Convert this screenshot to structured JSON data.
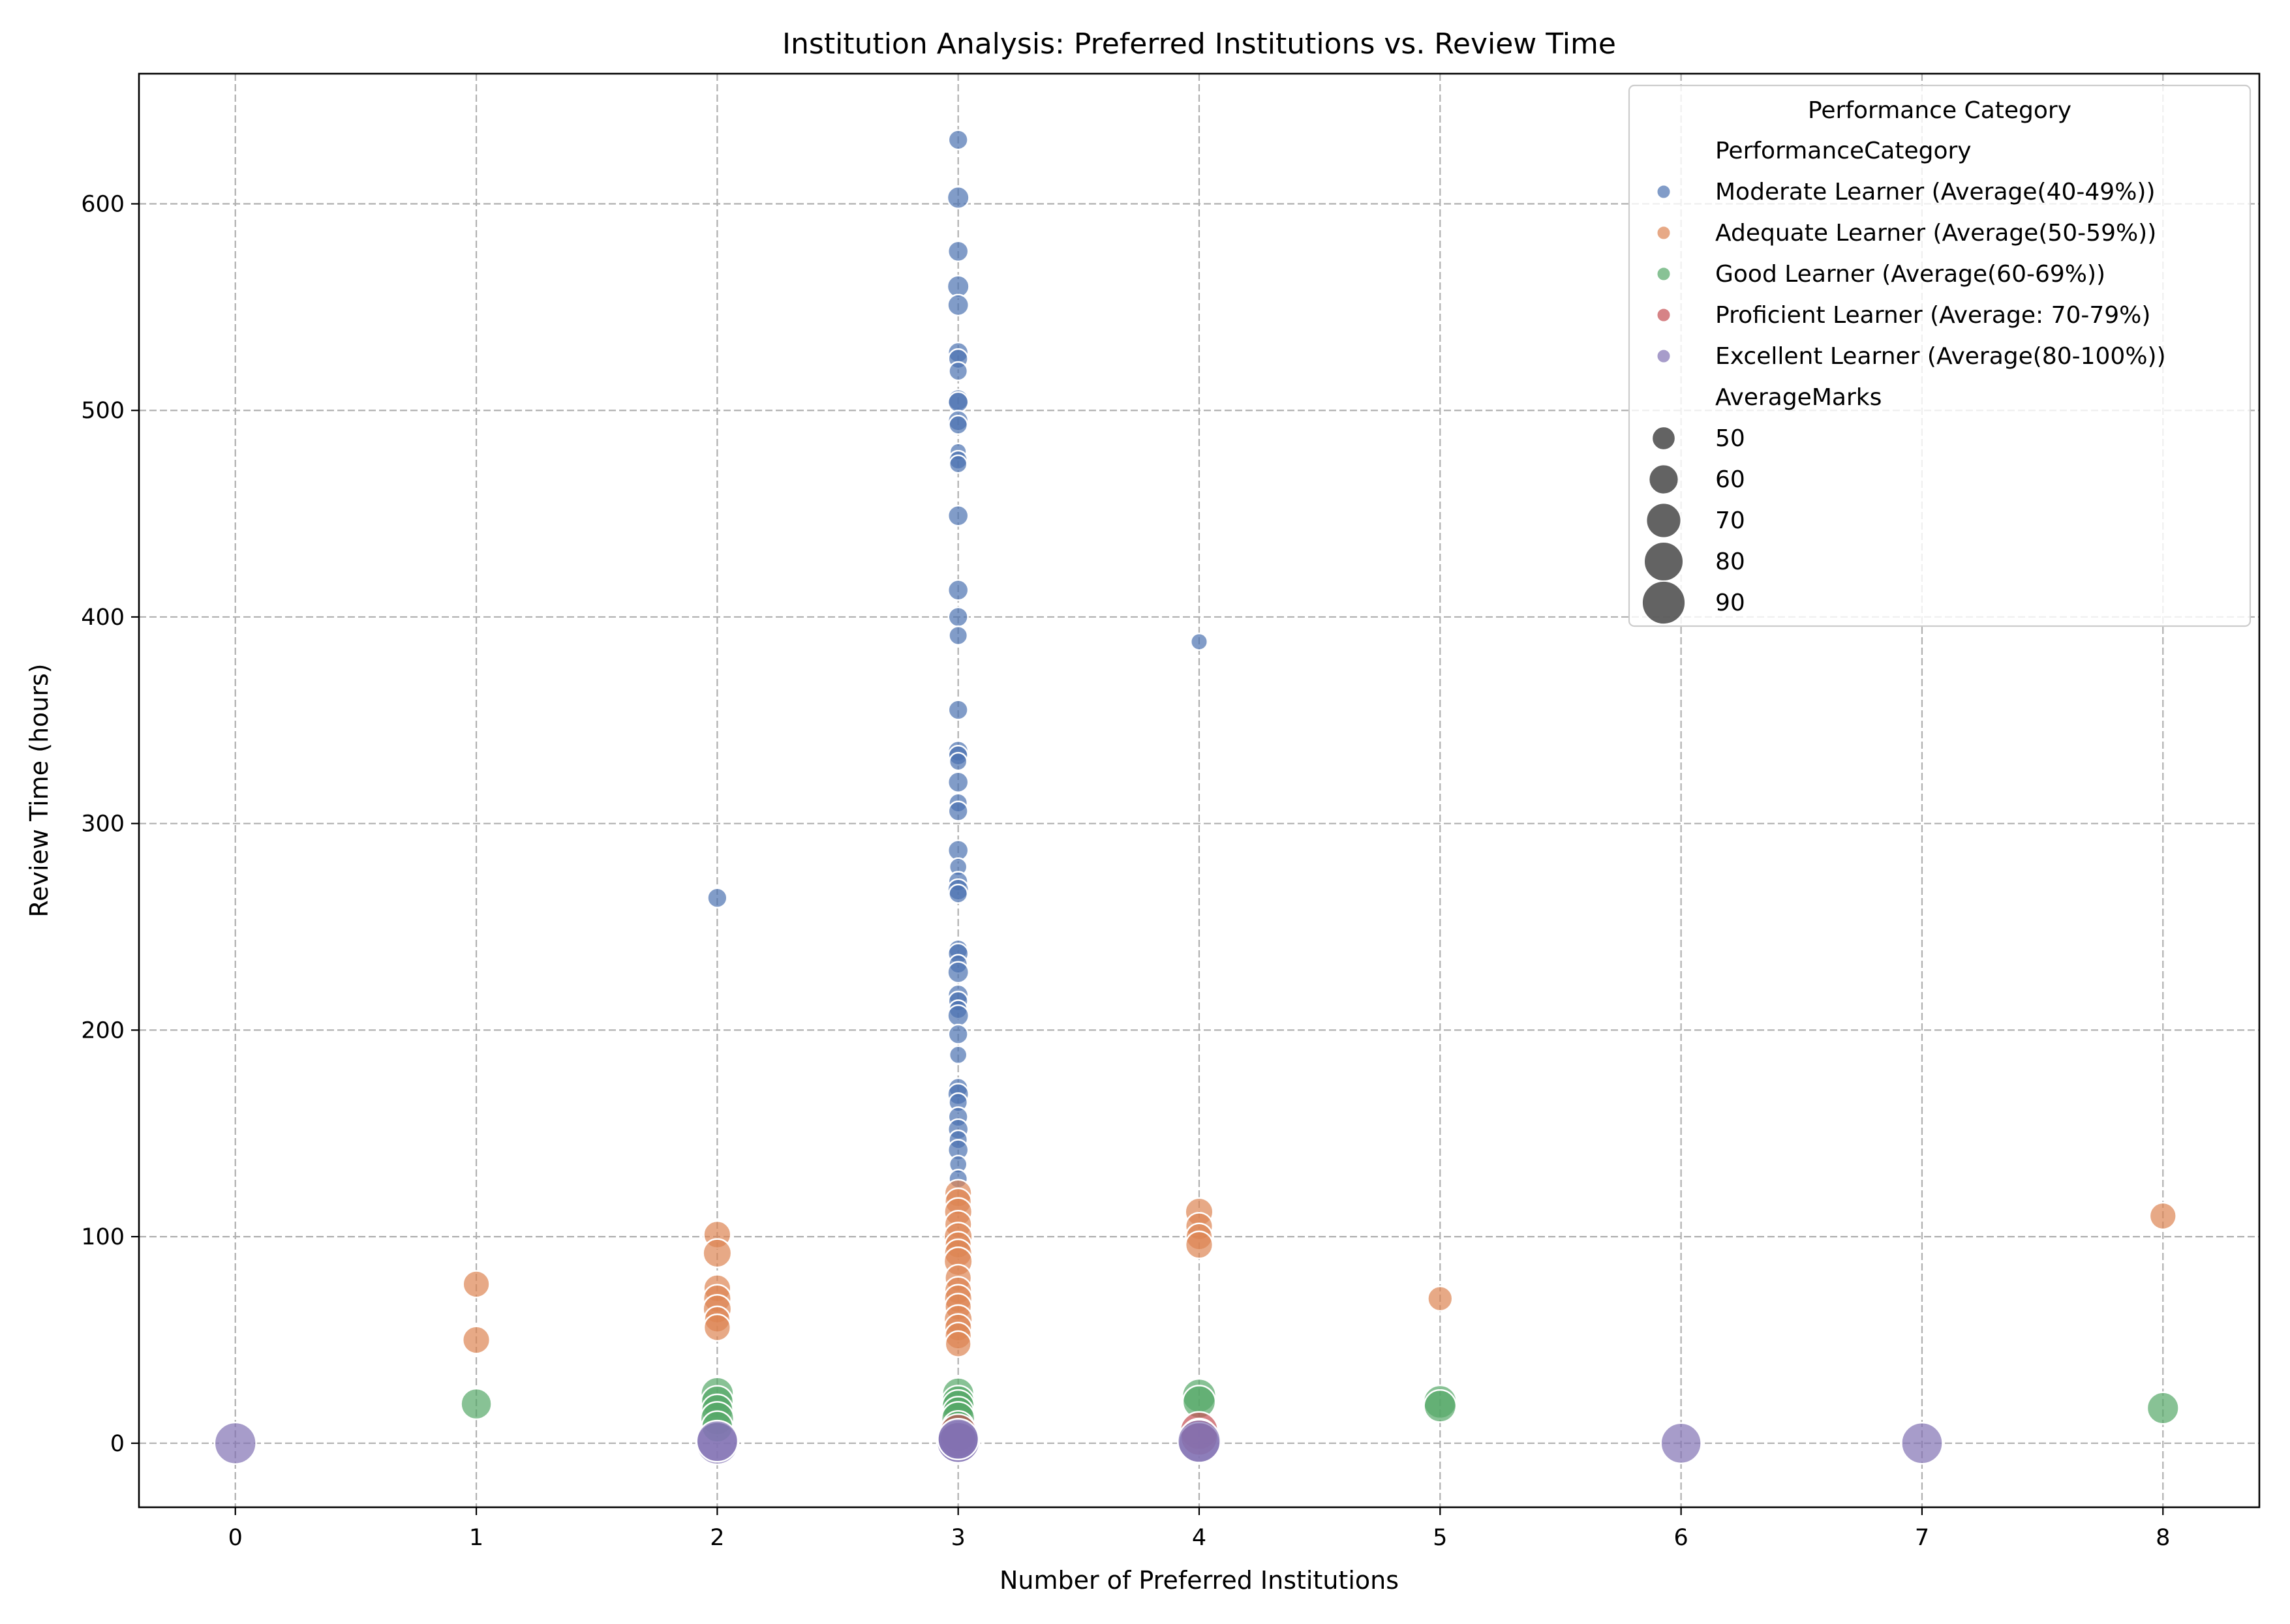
{
  "chart_data": {
    "type": "scatter",
    "title": "Institution Analysis: Preferred Institutions vs. Review Time",
    "xlabel": "Number of Preferred Institutions",
    "ylabel": "Review Time (hours)",
    "xlim": [
      -0.4,
      8.4
    ],
    "ylim": [
      -31,
      663
    ],
    "xticks": [
      0,
      1,
      2,
      3,
      4,
      5,
      6,
      7,
      8
    ],
    "yticks": [
      0,
      100,
      200,
      300,
      400,
      500,
      600
    ],
    "grid": true,
    "point_alpha": 0.7,
    "legend": {
      "title": "Performance Category",
      "position": "top-right",
      "hue_title": "PerformanceCategory",
      "size_title": "AverageMarks",
      "size_levels": [
        50,
        60,
        70,
        80,
        90
      ]
    },
    "series": [
      {
        "name": "Moderate Learner (Average(40-49%))",
        "color": "#4c72b0",
        "points": [
          [
            3,
            631,
            45
          ],
          [
            3,
            603,
            48
          ],
          [
            3,
            577,
            46
          ],
          [
            3,
            560,
            48
          ],
          [
            3,
            551,
            47
          ],
          [
            3,
            528,
            46
          ],
          [
            3,
            525,
            45
          ],
          [
            3,
            519,
            44
          ],
          [
            3,
            505,
            47
          ],
          [
            3,
            504,
            46
          ],
          [
            3,
            495,
            46
          ],
          [
            3,
            493,
            44
          ],
          [
            3,
            480,
            42
          ],
          [
            3,
            476,
            44
          ],
          [
            3,
            474,
            43
          ],
          [
            3,
            449,
            46
          ],
          [
            3,
            413,
            46
          ],
          [
            3,
            400,
            45
          ],
          [
            3,
            391,
            44
          ],
          [
            3,
            355,
            45
          ],
          [
            3,
            335,
            46
          ],
          [
            3,
            333,
            45
          ],
          [
            3,
            330,
            43
          ],
          [
            3,
            320,
            46
          ],
          [
            3,
            310,
            44
          ],
          [
            3,
            306,
            45
          ],
          [
            3,
            287,
            46
          ],
          [
            3,
            279,
            43
          ],
          [
            3,
            272,
            45
          ],
          [
            3,
            268,
            47
          ],
          [
            3,
            266,
            44
          ],
          [
            3,
            239,
            45
          ],
          [
            3,
            237,
            46
          ],
          [
            3,
            232,
            44
          ],
          [
            3,
            228,
            47
          ],
          [
            3,
            217,
            46
          ],
          [
            3,
            214,
            45
          ],
          [
            3,
            210,
            44
          ],
          [
            3,
            207,
            47
          ],
          [
            3,
            198,
            45
          ],
          [
            3,
            188,
            43
          ],
          [
            3,
            172,
            45
          ],
          [
            3,
            169,
            47
          ],
          [
            3,
            165,
            44
          ],
          [
            3,
            158,
            45
          ],
          [
            3,
            152,
            46
          ],
          [
            3,
            147,
            44
          ],
          [
            3,
            142,
            46
          ],
          [
            3,
            135,
            43
          ],
          [
            3,
            128,
            44
          ],
          [
            2,
            264,
            45
          ],
          [
            4,
            388,
            42
          ]
        ]
      },
      {
        "name": "Adequate Learner (Average(50-59%))",
        "color": "#dd8452",
        "points": [
          [
            1,
            77,
            55
          ],
          [
            1,
            50,
            56
          ],
          [
            2,
            101,
            56
          ],
          [
            2,
            92,
            58
          ],
          [
            2,
            75,
            56
          ],
          [
            2,
            70,
            57
          ],
          [
            2,
            65,
            58
          ],
          [
            2,
            60,
            54
          ],
          [
            2,
            56,
            55
          ],
          [
            3,
            121,
            56
          ],
          [
            3,
            117,
            55
          ],
          [
            3,
            112,
            57
          ],
          [
            3,
            106,
            56
          ],
          [
            3,
            100,
            58
          ],
          [
            3,
            96,
            55
          ],
          [
            3,
            92,
            57
          ],
          [
            3,
            88,
            58
          ],
          [
            3,
            80,
            55
          ],
          [
            3,
            74,
            56
          ],
          [
            3,
            70,
            57
          ],
          [
            3,
            66,
            55
          ],
          [
            3,
            60,
            58
          ],
          [
            3,
            56,
            56
          ],
          [
            3,
            52,
            55
          ],
          [
            3,
            48,
            54
          ],
          [
            4,
            112,
            57
          ],
          [
            4,
            105,
            56
          ],
          [
            4,
            100,
            55
          ],
          [
            4,
            96,
            56
          ],
          [
            5,
            70,
            52
          ],
          [
            8,
            110,
            55
          ]
        ]
      },
      {
        "name": "Good Learner (Average(60-69%))",
        "color": "#55a868",
        "points": [
          [
            1,
            19,
            62
          ],
          [
            2,
            24,
            66
          ],
          [
            2,
            20,
            65
          ],
          [
            2,
            16,
            64
          ],
          [
            2,
            12,
            67
          ],
          [
            2,
            8,
            63
          ],
          [
            3,
            24,
            64
          ],
          [
            3,
            20,
            66
          ],
          [
            3,
            18,
            65
          ],
          [
            3,
            15,
            63
          ],
          [
            3,
            12,
            67
          ],
          [
            3,
            8,
            64
          ],
          [
            4,
            23,
            68
          ],
          [
            4,
            20,
            66
          ],
          [
            5,
            20,
            67
          ],
          [
            5,
            18,
            65
          ],
          [
            8,
            17,
            64
          ]
        ]
      },
      {
        "name": "Proficient Learner (Average: 70-79%)",
        "color": "#c44e52",
        "points": [
          [
            3,
            5,
            76
          ],
          [
            3,
            2,
            74
          ],
          [
            4,
            6,
            77
          ],
          [
            4,
            3,
            75
          ]
        ]
      },
      {
        "name": "Excellent Learner (Average(80-100%))",
        "color": "#8172b3",
        "points": [
          [
            0,
            0,
            86
          ],
          [
            2,
            0,
            88
          ],
          [
            2,
            1,
            85
          ],
          [
            3,
            0,
            87
          ],
          [
            3,
            1,
            90
          ],
          [
            3,
            2,
            84
          ],
          [
            4,
            0,
            86
          ],
          [
            4,
            1,
            89
          ],
          [
            6,
            0,
            83
          ],
          [
            7,
            0,
            85
          ]
        ]
      }
    ]
  }
}
